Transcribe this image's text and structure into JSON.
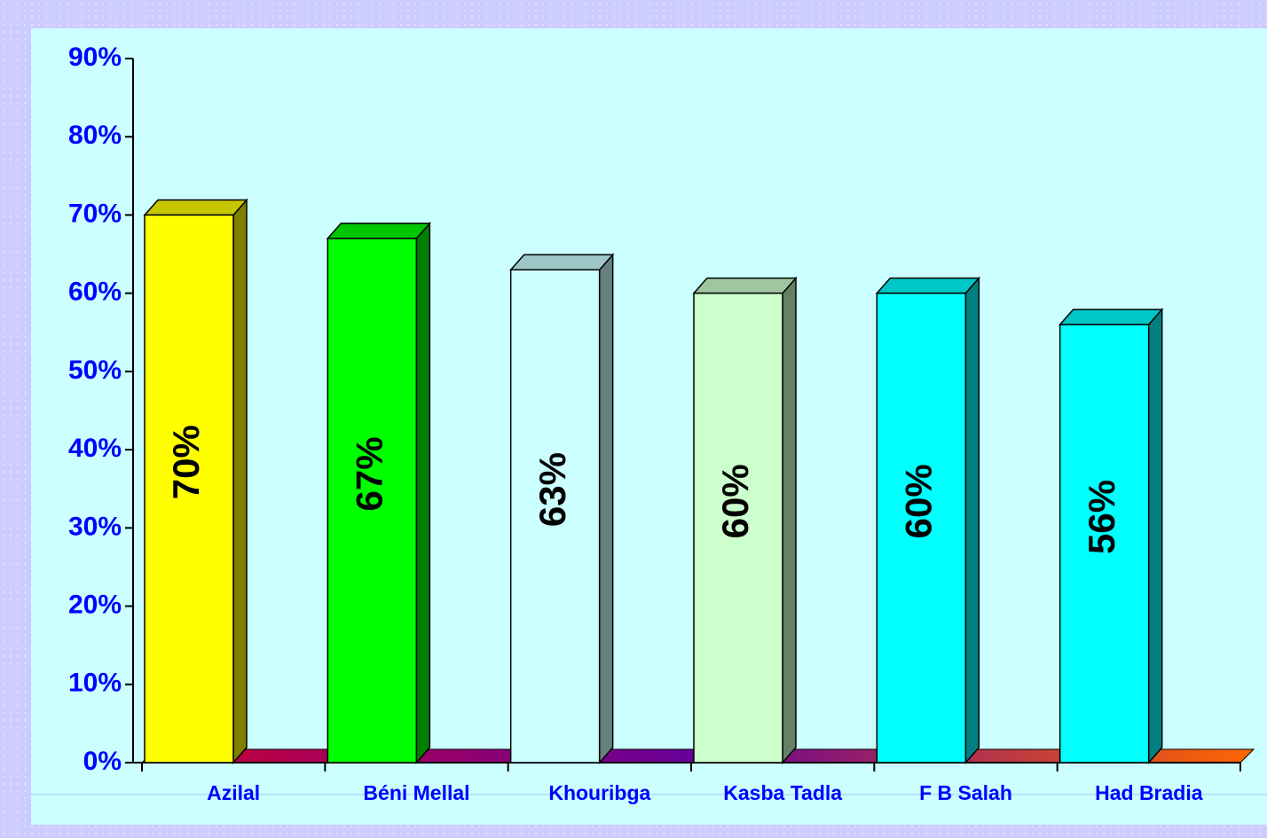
{
  "chart_data": {
    "type": "bar3d",
    "categories": [
      "Azilal",
      "Béni Mellal",
      "Khouribga",
      "Kasba Tadla",
      "F B Salah",
      "Had Bradia"
    ],
    "values": [
      70,
      67,
      63,
      60,
      60,
      56
    ],
    "value_labels": [
      "70%",
      "67%",
      "63%",
      "60%",
      "60%",
      "56%"
    ],
    "colors": [
      "#ffff00",
      "#00ff00",
      "#ccffff",
      "#ccffcc",
      "#00ffff",
      "#00ffff"
    ],
    "ylim": [
      0,
      90
    ],
    "yticks": [
      {
        "value": 0,
        "label": "0%"
      },
      {
        "value": 10,
        "label": "10%"
      },
      {
        "value": 20,
        "label": "20%"
      },
      {
        "value": 30,
        "label": "30%"
      },
      {
        "value": 40,
        "label": "40%"
      },
      {
        "value": 50,
        "label": "50%"
      },
      {
        "value": 60,
        "label": "60%"
      },
      {
        "value": 70,
        "label": "70%"
      },
      {
        "value": 80,
        "label": "80%"
      },
      {
        "value": 90,
        "label": "90%"
      }
    ],
    "grid": false
  }
}
